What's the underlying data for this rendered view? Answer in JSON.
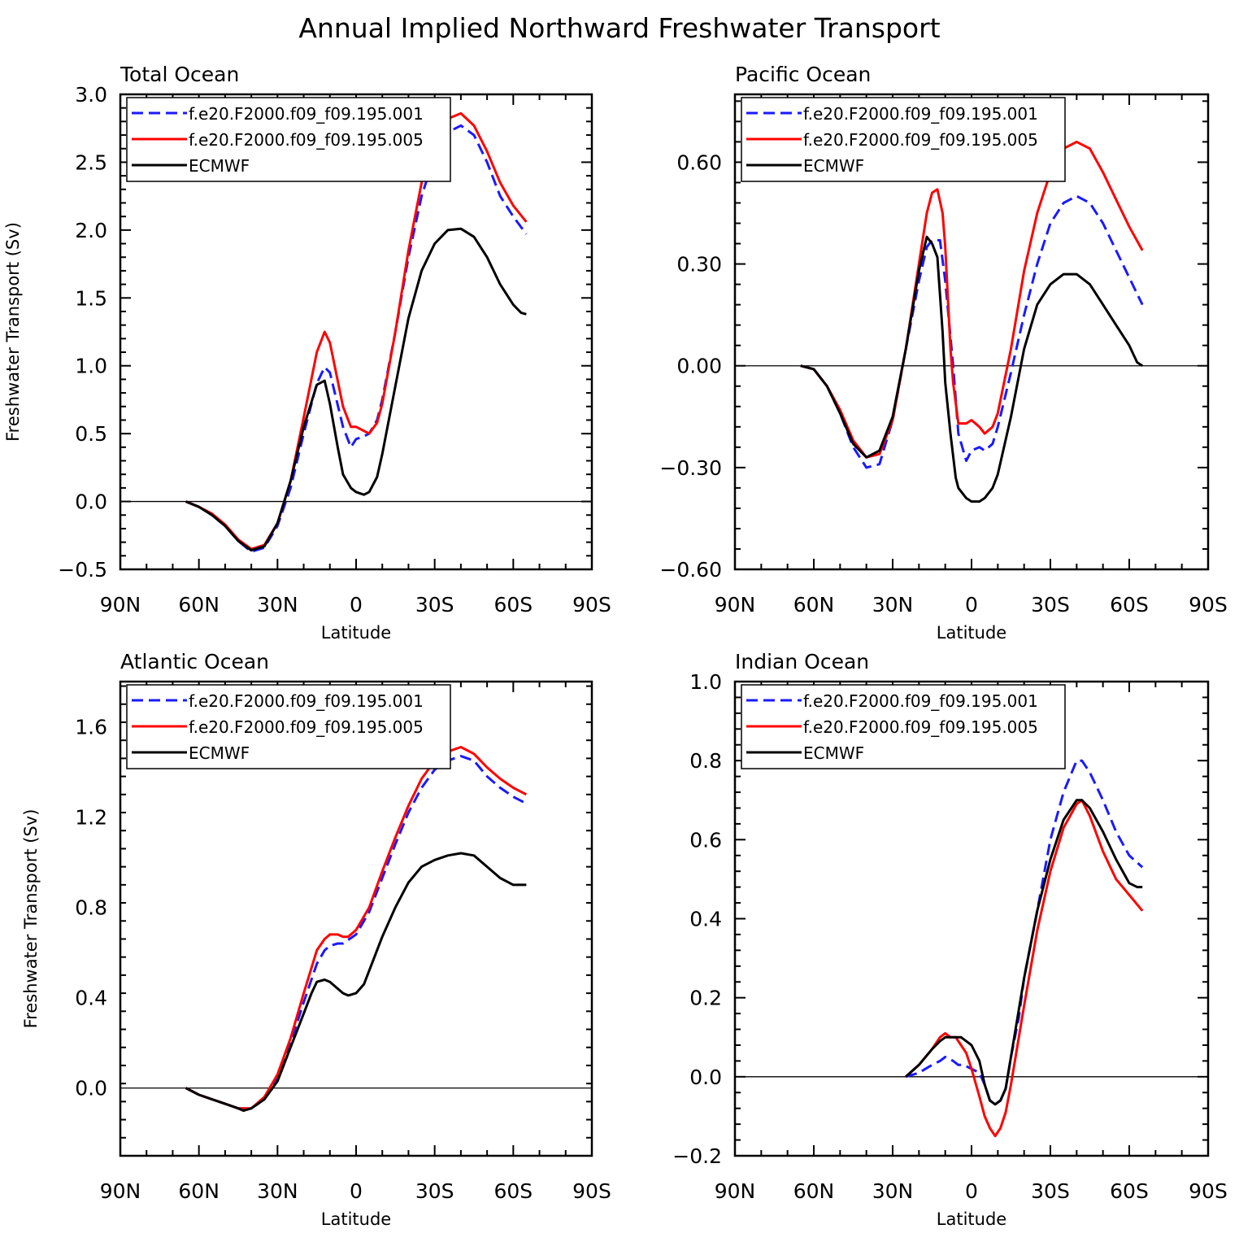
{
  "title": "Annual Implied Northward Freshwater Transport",
  "colors": {
    "exp1": "#1a1aff",
    "exp2": "#ff0000",
    "obs": "#000000"
  },
  "chart_data": [
    {
      "type": "line",
      "title": "Total Ocean",
      "xlabel": "Latitude",
      "ylabel": "Freshwater Transport (Sv)",
      "xlim": [
        90,
        -90
      ],
      "ylim": [
        -0.5,
        3.0
      ],
      "xticks": [
        90,
        60,
        30,
        0,
        -30,
        -60,
        -90
      ],
      "xtick_labels": [
        "90N",
        "60N",
        "30N",
        "0",
        "30S",
        "60S",
        "90S"
      ],
      "yticks": [
        -0.5,
        0.0,
        0.5,
        1.0,
        1.5,
        2.0,
        2.5,
        3.0
      ],
      "ytick_labels": [
        "−0.5",
        "0.0",
        "0.5",
        "1.0",
        "1.5",
        "2.0",
        "2.5",
        "3.0"
      ],
      "legend_position": "top-left",
      "grid": false,
      "series": [
        {
          "name": "f.e20.F2000.f09_f09.195.001",
          "style": "dashed",
          "color": "#1a1aff",
          "x": [
            65,
            60,
            55,
            50,
            45,
            40,
            35,
            30,
            25,
            20,
            15,
            12,
            10,
            5,
            2,
            0,
            -3,
            -5,
            -8,
            -10,
            -15,
            -20,
            -25,
            -30,
            -35,
            -40,
            -45,
            -50,
            -55,
            -60,
            -65
          ],
          "y": [
            0,
            -0.04,
            -0.1,
            -0.18,
            -0.29,
            -0.37,
            -0.34,
            -0.18,
            0.1,
            0.5,
            0.87,
            0.99,
            0.95,
            0.55,
            0.4,
            0.46,
            0.48,
            0.5,
            0.6,
            0.75,
            1.25,
            1.8,
            2.25,
            2.55,
            2.72,
            2.77,
            2.7,
            2.5,
            2.25,
            2.1,
            1.97
          ]
        },
        {
          "name": "f.e20.F2000.f09_f09.195.005",
          "style": "solid",
          "color": "#ff0000",
          "x": [
            65,
            60,
            55,
            50,
            45,
            40,
            35,
            30,
            25,
            20,
            15,
            12,
            10,
            5,
            2,
            0,
            -3,
            -5,
            -8,
            -10,
            -15,
            -20,
            -25,
            -30,
            -35,
            -40,
            -45,
            -50,
            -55,
            -60,
            -65
          ],
          "y": [
            0,
            -0.04,
            -0.09,
            -0.17,
            -0.28,
            -0.35,
            -0.32,
            -0.16,
            0.15,
            0.62,
            1.1,
            1.25,
            1.17,
            0.7,
            0.55,
            0.55,
            0.52,
            0.5,
            0.58,
            0.72,
            1.25,
            1.85,
            2.35,
            2.65,
            2.82,
            2.86,
            2.77,
            2.58,
            2.35,
            2.18,
            2.06
          ]
        },
        {
          "name": "ECMWF",
          "style": "solid",
          "color": "#000000",
          "x": [
            65,
            60,
            55,
            50,
            45,
            40,
            35,
            30,
            25,
            20,
            15,
            12,
            10,
            7,
            5,
            2,
            0,
            -3,
            -5,
            -8,
            -10,
            -15,
            -20,
            -25,
            -30,
            -35,
            -40,
            -45,
            -50,
            -55,
            -60,
            -63,
            -65
          ],
          "y": [
            0,
            -0.04,
            -0.1,
            -0.18,
            -0.29,
            -0.36,
            -0.33,
            -0.16,
            0.15,
            0.55,
            0.86,
            0.89,
            0.72,
            0.4,
            0.2,
            0.1,
            0.07,
            0.05,
            0.07,
            0.18,
            0.35,
            0.85,
            1.35,
            1.7,
            1.9,
            2.0,
            2.01,
            1.95,
            1.8,
            1.6,
            1.45,
            1.39,
            1.38
          ]
        }
      ]
    },
    {
      "type": "line",
      "title": "Pacific Ocean",
      "xlabel": "Latitude",
      "ylabel": "",
      "xlim": [
        90,
        -90
      ],
      "ylim": [
        -0.6,
        0.8
      ],
      "xticks": [
        90,
        60,
        30,
        0,
        -30,
        -60,
        -90
      ],
      "xtick_labels": [
        "90N",
        "60N",
        "30N",
        "0",
        "30S",
        "60S",
        "90S"
      ],
      "yticks": [
        -0.6,
        -0.3,
        0.0,
        0.3,
        0.6
      ],
      "ytick_labels": [
        "−0.60",
        "−0.30",
        "0.00",
        "0.30",
        "0.60"
      ],
      "legend_position": "top-left",
      "grid": false,
      "series": [
        {
          "name": "f.e20.F2000.f09_f09.195.001",
          "style": "dashed",
          "color": "#1a1aff",
          "x": [
            65,
            60,
            55,
            50,
            45,
            40,
            35,
            30,
            25,
            20,
            17,
            15,
            12,
            10,
            7,
            5,
            2,
            0,
            -3,
            -5,
            -8,
            -10,
            -15,
            -20,
            -25,
            -30,
            -35,
            -40,
            -45,
            -50,
            -55,
            -60,
            -65
          ],
          "y": [
            0,
            -0.01,
            -0.06,
            -0.14,
            -0.24,
            -0.3,
            -0.29,
            -0.16,
            0.05,
            0.25,
            0.35,
            0.37,
            0.37,
            0.25,
            0.0,
            -0.2,
            -0.28,
            -0.25,
            -0.24,
            -0.25,
            -0.23,
            -0.18,
            -0.02,
            0.15,
            0.3,
            0.42,
            0.48,
            0.5,
            0.48,
            0.42,
            0.34,
            0.26,
            0.18
          ]
        },
        {
          "name": "f.e20.F2000.f09_f09.195.005",
          "style": "solid",
          "color": "#ff0000",
          "x": [
            65,
            60,
            55,
            50,
            45,
            40,
            35,
            30,
            25,
            20,
            17,
            15,
            13,
            11,
            10,
            8,
            7,
            5,
            2,
            0,
            -3,
            -5,
            -8,
            -10,
            -15,
            -20,
            -25,
            -30,
            -35,
            -40,
            -45,
            -50,
            -55,
            -60,
            -65
          ],
          "y": [
            0,
            -0.01,
            -0.06,
            -0.13,
            -0.22,
            -0.27,
            -0.26,
            -0.16,
            0.05,
            0.3,
            0.45,
            0.51,
            0.52,
            0.45,
            0.35,
            0.05,
            -0.05,
            -0.17,
            -0.17,
            -0.16,
            -0.18,
            -0.2,
            -0.18,
            -0.14,
            0.05,
            0.28,
            0.45,
            0.57,
            0.64,
            0.66,
            0.64,
            0.57,
            0.49,
            0.41,
            0.34
          ]
        },
        {
          "name": "ECMWF",
          "style": "solid",
          "color": "#000000",
          "x": [
            65,
            60,
            55,
            50,
            45,
            40,
            35,
            30,
            25,
            20,
            17,
            15,
            13,
            11,
            10,
            8,
            6,
            5,
            2,
            0,
            -3,
            -5,
            -8,
            -10,
            -15,
            -20,
            -25,
            -30,
            -35,
            -40,
            -45,
            -50,
            -55,
            -60,
            -63,
            -65
          ],
          "y": [
            0,
            -0.01,
            -0.06,
            -0.14,
            -0.23,
            -0.27,
            -0.25,
            -0.15,
            0.05,
            0.28,
            0.38,
            0.36,
            0.32,
            0.1,
            -0.05,
            -0.2,
            -0.33,
            -0.36,
            -0.39,
            -0.4,
            -0.4,
            -0.39,
            -0.36,
            -0.32,
            -0.15,
            0.05,
            0.18,
            0.24,
            0.27,
            0.27,
            0.24,
            0.18,
            0.12,
            0.06,
            0.01,
            0.0
          ]
        }
      ]
    },
    {
      "type": "line",
      "title": "Atlantic Ocean",
      "xlabel": "Latitude",
      "ylabel": "Freshwater Transport (Sv)",
      "xlim": [
        90,
        -90
      ],
      "ylim": [
        -0.3,
        1.8
      ],
      "xticks": [
        90,
        60,
        30,
        0,
        -30,
        -60,
        -90
      ],
      "xtick_labels": [
        "90N",
        "60N",
        "30N",
        "0",
        "30S",
        "60S",
        "90S"
      ],
      "yticks": [
        0.0,
        0.4,
        0.8,
        1.2,
        1.6
      ],
      "ytick_labels": [
        "0.0",
        "0.4",
        "0.8",
        "1.2",
        "1.6"
      ],
      "legend_position": "top-left",
      "grid": false,
      "series": [
        {
          "name": "f.e20.F2000.f09_f09.195.001",
          "style": "dashed",
          "color": "#1a1aff",
          "x": [
            65,
            60,
            55,
            50,
            45,
            40,
            35,
            30,
            25,
            20,
            15,
            12,
            10,
            7,
            5,
            0,
            -5,
            -10,
            -15,
            -20,
            -25,
            -30,
            -35,
            -40,
            -45,
            -50,
            -55,
            -60,
            -65
          ],
          "y": [
            0,
            -0.03,
            -0.05,
            -0.07,
            -0.09,
            -0.09,
            -0.05,
            0.05,
            0.2,
            0.38,
            0.55,
            0.61,
            0.63,
            0.64,
            0.64,
            0.68,
            0.78,
            0.93,
            1.08,
            1.22,
            1.33,
            1.41,
            1.45,
            1.47,
            1.45,
            1.38,
            1.33,
            1.29,
            1.26
          ]
        },
        {
          "name": "f.e20.F2000.f09_f09.195.005",
          "style": "solid",
          "color": "#ff0000",
          "x": [
            65,
            60,
            55,
            50,
            45,
            40,
            35,
            30,
            25,
            20,
            15,
            12,
            10,
            7,
            5,
            3,
            0,
            -5,
            -10,
            -15,
            -20,
            -25,
            -30,
            -35,
            -40,
            -45,
            -50,
            -55,
            -60,
            -65
          ],
          "y": [
            0,
            -0.03,
            -0.05,
            -0.07,
            -0.09,
            -0.09,
            -0.04,
            0.06,
            0.22,
            0.42,
            0.61,
            0.66,
            0.68,
            0.68,
            0.67,
            0.67,
            0.7,
            0.8,
            0.96,
            1.11,
            1.25,
            1.37,
            1.45,
            1.49,
            1.51,
            1.48,
            1.42,
            1.37,
            1.33,
            1.3
          ]
        },
        {
          "name": "ECMWF",
          "style": "solid",
          "color": "#000000",
          "x": [
            65,
            60,
            55,
            50,
            45,
            43,
            40,
            35,
            30,
            25,
            20,
            17,
            15,
            12,
            10,
            8,
            5,
            3,
            0,
            -3,
            -5,
            -10,
            -15,
            -20,
            -25,
            -30,
            -35,
            -40,
            -45,
            -50,
            -55,
            -60,
            -65
          ],
          "y": [
            0,
            -0.03,
            -0.05,
            -0.07,
            -0.09,
            -0.1,
            -0.09,
            -0.05,
            0.03,
            0.18,
            0.33,
            0.42,
            0.47,
            0.48,
            0.47,
            0.45,
            0.42,
            0.41,
            0.42,
            0.46,
            0.52,
            0.67,
            0.8,
            0.91,
            0.98,
            1.01,
            1.03,
            1.04,
            1.03,
            0.98,
            0.93,
            0.9,
            0.9
          ]
        }
      ]
    },
    {
      "type": "line",
      "title": "Indian Ocean",
      "xlabel": "Latitude",
      "ylabel": "",
      "xlim": [
        90,
        -90
      ],
      "ylim": [
        -0.2,
        1.0
      ],
      "xticks": [
        90,
        60,
        30,
        0,
        -30,
        -60,
        -90
      ],
      "xtick_labels": [
        "90N",
        "60N",
        "30N",
        "0",
        "30S",
        "60S",
        "90S"
      ],
      "yticks": [
        -0.2,
        0.0,
        0.2,
        0.4,
        0.6,
        0.8,
        1.0
      ],
      "ytick_labels": [
        "−0.2",
        "0.0",
        "0.2",
        "0.4",
        "0.6",
        "0.8",
        "1.0"
      ],
      "legend_position": "top-left",
      "grid": false,
      "series": [
        {
          "name": "f.e20.F2000.f09_f09.195.001",
          "style": "dashed",
          "color": "#1a1aff",
          "x": [
            25,
            20,
            15,
            12,
            10,
            7,
            5,
            3,
            0,
            -3,
            -5,
            -7,
            -9,
            -11,
            -13,
            -15,
            -18,
            -20,
            -25,
            -30,
            -35,
            -40,
            -42,
            -45,
            -50,
            -55,
            -60,
            -65
          ],
          "y": [
            0.0,
            0.01,
            0.03,
            0.04,
            0.05,
            0.04,
            0.03,
            0.03,
            0.02,
            0.01,
            -0.02,
            -0.06,
            -0.07,
            -0.06,
            -0.03,
            0.05,
            0.15,
            0.25,
            0.42,
            0.6,
            0.72,
            0.8,
            0.8,
            0.77,
            0.7,
            0.62,
            0.56,
            0.53
          ]
        },
        {
          "name": "f.e20.F2000.f09_f09.195.005",
          "style": "solid",
          "color": "#ff0000",
          "x": [
            25,
            20,
            15,
            12,
            10,
            8,
            6,
            4,
            2,
            0,
            -3,
            -5,
            -7,
            -9,
            -11,
            -13,
            -15,
            -20,
            -25,
            -30,
            -35,
            -40,
            -42,
            -45,
            -50,
            -55,
            -60,
            -65
          ],
          "y": [
            0.0,
            0.03,
            0.07,
            0.1,
            0.11,
            0.1,
            0.1,
            0.08,
            0.06,
            0.02,
            -0.05,
            -0.1,
            -0.13,
            -0.15,
            -0.13,
            -0.09,
            -0.02,
            0.18,
            0.37,
            0.52,
            0.63,
            0.69,
            0.7,
            0.66,
            0.57,
            0.5,
            0.46,
            0.42
          ]
        },
        {
          "name": "ECMWF",
          "style": "solid",
          "color": "#000000",
          "x": [
            25,
            20,
            15,
            12,
            10,
            8,
            6,
            4,
            2,
            0,
            -3,
            -5,
            -7,
            -9,
            -11,
            -13,
            -15,
            -20,
            -25,
            -30,
            -35,
            -40,
            -42,
            -45,
            -50,
            -55,
            -60,
            -63,
            -65
          ],
          "y": [
            0.0,
            0.03,
            0.07,
            0.09,
            0.1,
            0.1,
            0.1,
            0.1,
            0.09,
            0.08,
            0.04,
            -0.02,
            -0.06,
            -0.07,
            -0.06,
            -0.03,
            0.05,
            0.25,
            0.42,
            0.55,
            0.65,
            0.7,
            0.7,
            0.68,
            0.62,
            0.55,
            0.49,
            0.48,
            0.48
          ]
        }
      ]
    }
  ]
}
